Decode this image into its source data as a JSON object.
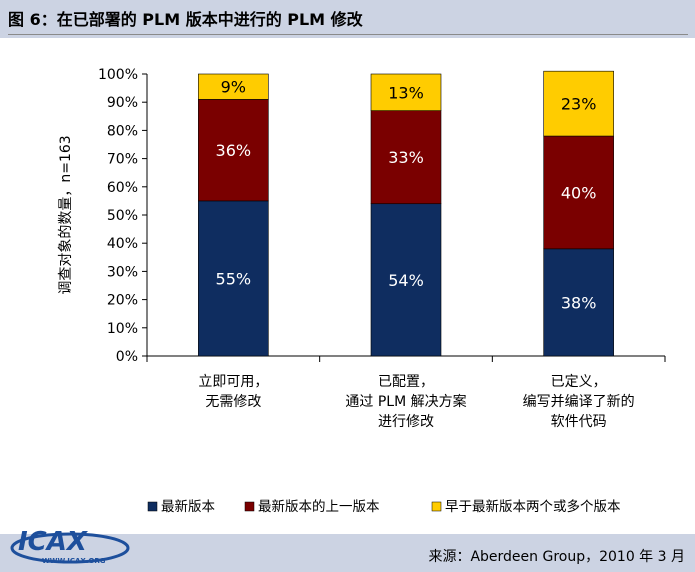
{
  "title": "图 6：在已部署的 PLM 版本中进行的 PLM 修改",
  "source": "来源：Aberdeen Group，2010 年 3 月",
  "logo": {
    "text": "ICAX",
    "subtext": "WWW.ICAX.ORG"
  },
  "chart_data": {
    "type": "bar",
    "stacked": true,
    "ylabel": "调查对象的数量，n=163",
    "ylim": [
      0,
      100
    ],
    "yticks": [
      "0%",
      "10%",
      "20%",
      "30%",
      "40%",
      "50%",
      "60%",
      "70%",
      "80%",
      "90%",
      "100%"
    ],
    "categories": [
      [
        "立即可用，",
        "无需修改"
      ],
      [
        "已配置，",
        "通过 PLM 解决方案",
        "进行修改"
      ],
      [
        "已定义，",
        "编写并编译了新的",
        "软件代码"
      ]
    ],
    "series": [
      {
        "name": "最新版本",
        "color": "#0f2d60",
        "values": [
          55,
          54,
          38
        ],
        "labels": [
          "55%",
          "54%",
          "38%"
        ]
      },
      {
        "name": "最新版本的上一版本",
        "color": "#7a0000",
        "values": [
          36,
          33,
          40
        ],
        "labels": [
          "36%",
          "33%",
          "40%"
        ]
      },
      {
        "name": "早于最新版本两个或多个版本",
        "color": "#ffcc00",
        "values": [
          9,
          13,
          23
        ],
        "labels": [
          "9%",
          "13%",
          "23%"
        ]
      }
    ],
    "legend": "bottom",
    "grid": false
  }
}
